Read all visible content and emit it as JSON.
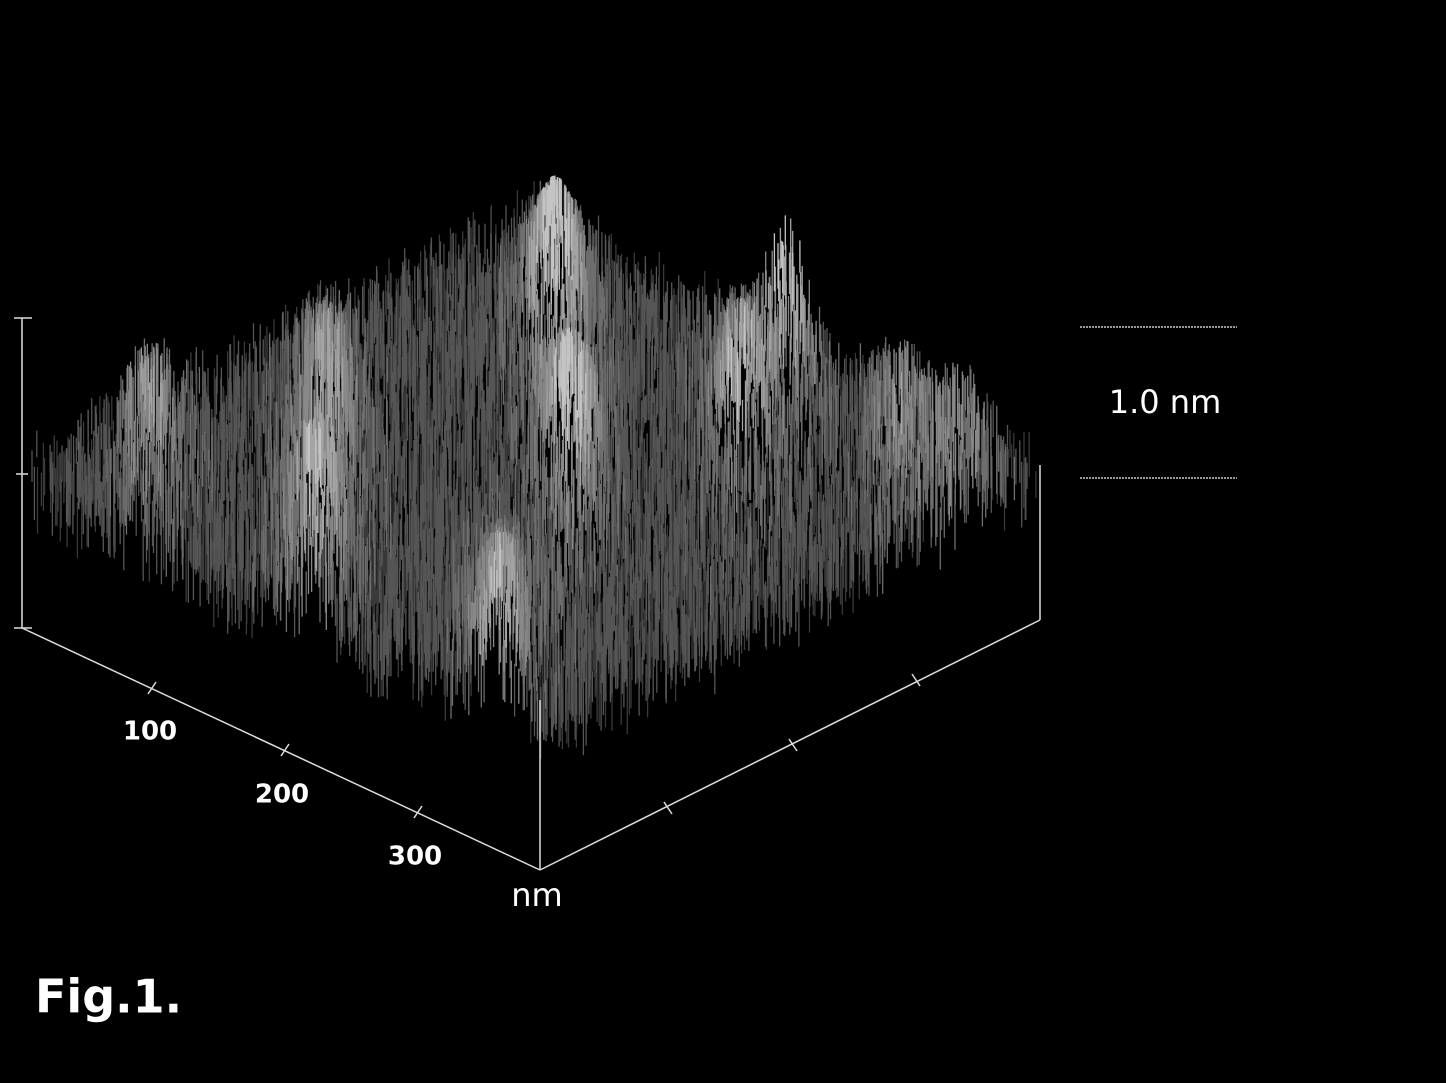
{
  "figure": {
    "x_axis": {
      "tick_labels": [
        "100",
        "200",
        "300"
      ],
      "unit": "nm"
    },
    "scale_bar": {
      "label": "1.0 nm"
    },
    "caption": "Fig.1."
  }
}
